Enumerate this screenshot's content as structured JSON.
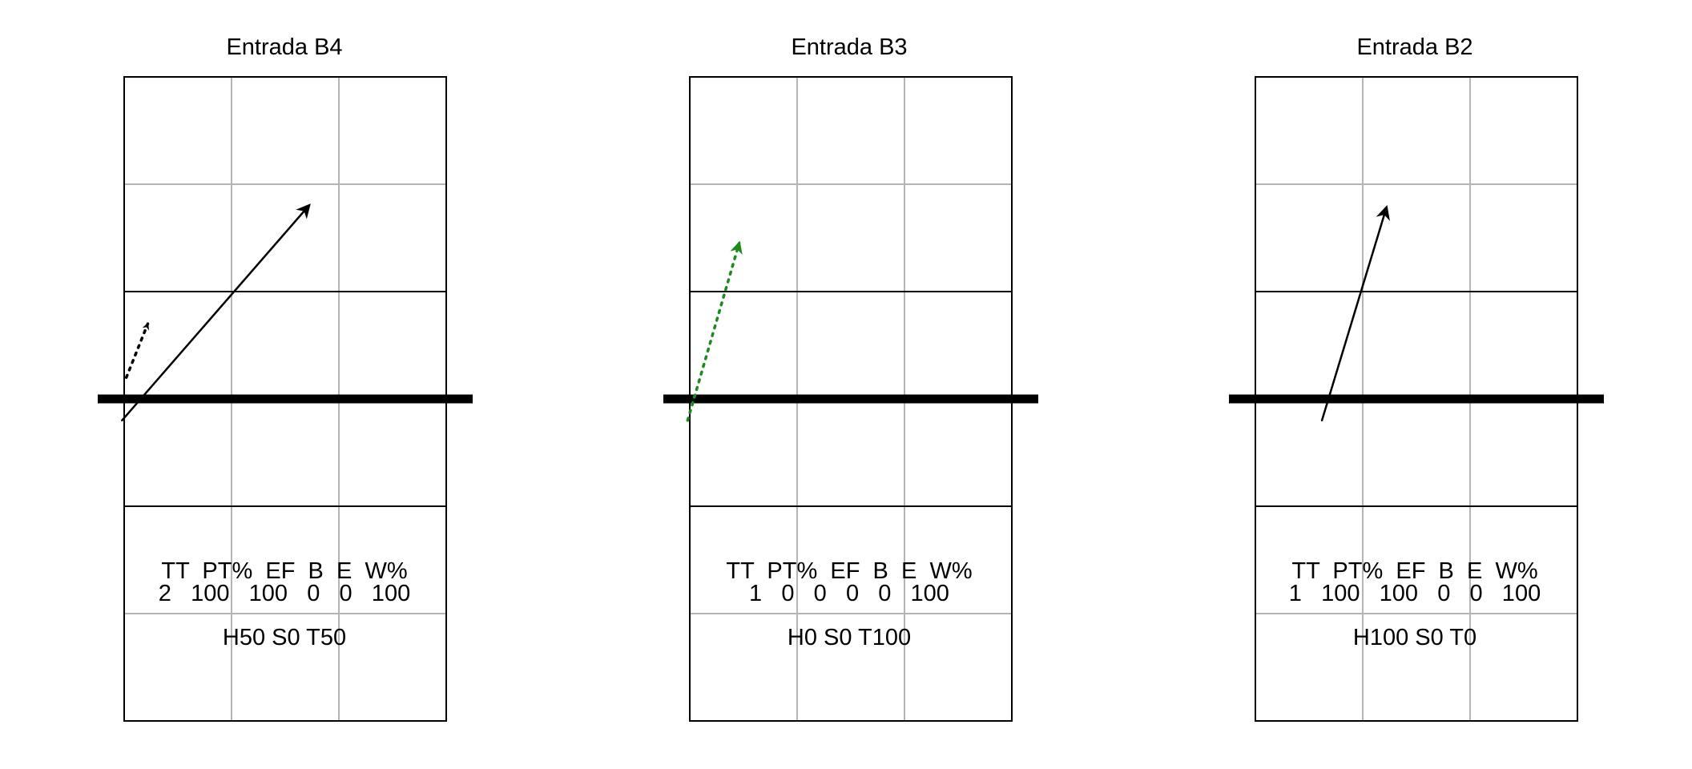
{
  "courts": [
    {
      "title": "Entrada B4",
      "stats": {
        "headers": [
          "TT",
          "PT%",
          "EF",
          "B",
          "E",
          "W%"
        ],
        "values": [
          "2",
          "100",
          "100",
          "0",
          "0",
          "100"
        ]
      },
      "distribution": "H50 S0 T50",
      "attacks": [
        {
          "style": "dotted",
          "color": "#000000",
          "from": [
            0.02,
            3.2
          ],
          "to": [
            0.22,
            3.7
          ]
        },
        {
          "style": "solid",
          "color": "#000000",
          "from": [
            -0.02,
            2.8
          ],
          "to": [
            1.72,
            4.8
          ]
        }
      ]
    },
    {
      "title": "Entrada B3",
      "stats": {
        "headers": [
          "TT",
          "PT%",
          "EF",
          "B",
          "E",
          "W%"
        ],
        "values": [
          "1",
          "0",
          "0",
          "0",
          "0",
          "100"
        ]
      },
      "distribution": "H0 S0 T100",
      "attacks": [
        {
          "style": "dotted",
          "color": "#1a8c1a",
          "from": [
            -0.02,
            2.8
          ],
          "to": [
            0.46,
            4.45
          ]
        }
      ]
    },
    {
      "title": "Entrada B2",
      "stats": {
        "headers": [
          "TT",
          "PT%",
          "EF",
          "B",
          "E",
          "W%"
        ],
        "values": [
          "1",
          "100",
          "100",
          "0",
          "0",
          "100"
        ]
      },
      "distribution": "H100 S0 T0",
      "attacks": [
        {
          "style": "solid",
          "color": "#000000",
          "from": [
            0.62,
            2.8
          ],
          "to": [
            1.22,
            4.78
          ]
        }
      ]
    }
  ]
}
